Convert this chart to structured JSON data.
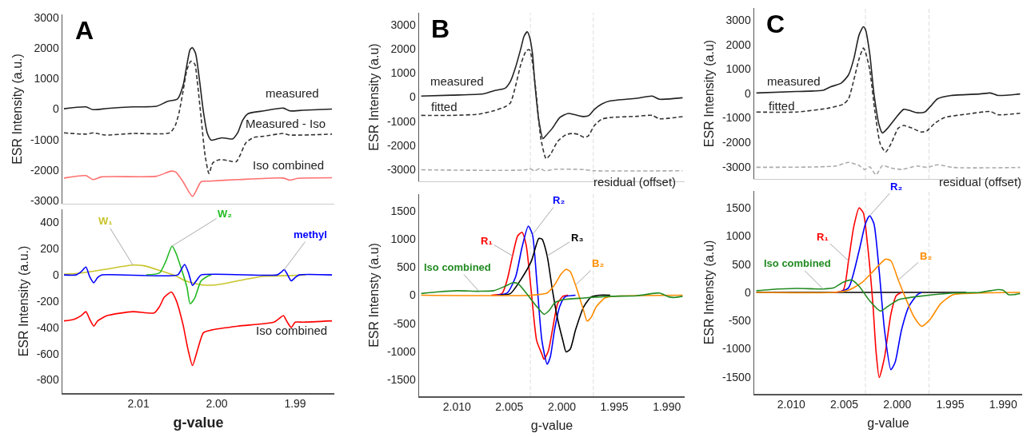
{
  "chart_data": [
    {
      "type": "line",
      "title": "A",
      "ylabel": "ESR Intensity (a.u.)",
      "xlim": [
        2.0197,
        1.985
      ],
      "ylim": [
        -3100,
        3100
      ],
      "yticks": [
        -3000,
        -2000,
        -1000,
        0,
        1000,
        2000,
        3000
      ],
      "tick_labels": "y",
      "marker": "none",
      "series": [
        {
          "name": "measured",
          "color": "#222222",
          "line_style": "solid",
          "x": [
            2.0195,
            2.0167,
            2.0158,
            2.014,
            2.0107,
            2.0077,
            2.0063,
            2.005,
            2.0043,
            2.0038,
            2.0034,
            2.0031,
            2.0027,
            2.0022,
            2.0017,
            2.0012,
            2.0007,
            2.0,
            1.9993,
            1.9987,
            1.998,
            1.9973,
            1.9967,
            1.996,
            1.994,
            1.9915,
            1.9907,
            1.989,
            1.9853
          ],
          "values": [
            10,
            70,
            -20,
            20,
            70,
            90,
            250,
            330,
            770,
            1470,
            1950,
            2010,
            1820,
            940,
            -100,
            -800,
            -1020,
            -980,
            -940,
            -960,
            -980,
            -760,
            -370,
            -150,
            -60,
            30,
            -60,
            -40,
            0
          ]
        },
        {
          "name": "Measured - Iso",
          "color": "#333333",
          "line_style": "dashed",
          "x": [
            2.0195,
            2.0167,
            2.0157,
            2.0143,
            2.0107,
            2.006,
            2.0053,
            2.0048,
            2.0043,
            2.0038,
            2.0033,
            2.0028,
            2.0025,
            2.002,
            2.0015,
            2.001,
            2.0005,
            1.9997,
            1.9987,
            1.998,
            1.9975,
            1.997,
            1.9963,
            1.9953,
            1.994,
            1.9915,
            1.9907,
            1.9853
          ],
          "values": [
            -780,
            -820,
            -780,
            -850,
            -800,
            -780,
            -540,
            -100,
            590,
            1290,
            1570,
            1470,
            940,
            -280,
            -1500,
            -2110,
            -1760,
            -1660,
            -1680,
            -1720,
            -1720,
            -1500,
            -1110,
            -930,
            -890,
            -800,
            -850,
            -820
          ]
        },
        {
          "name": "Iso combined",
          "color": "#ff6f6f",
          "line_style": "solid",
          "x": [
            2.0195,
            2.0167,
            2.0158,
            2.0147,
            2.0077,
            2.0058,
            2.0052,
            2.0043,
            2.0031,
            2.002,
            2.001,
            1.9973,
            1.9915,
            1.9907,
            1.9897,
            1.9853
          ],
          "values": [
            -2260,
            -2180,
            -2310,
            -2220,
            -2200,
            -2030,
            -2070,
            -2380,
            -2860,
            -2380,
            -2360,
            -2310,
            -2260,
            -2330,
            -2270,
            -2250
          ]
        }
      ]
    },
    {
      "type": "line",
      "xlabel": "g-value",
      "ylabel": "ESR Intensity (a.u.)",
      "xlim": [
        2.0197,
        1.985
      ],
      "xticks": [
        2.01,
        {
          "value": 2.0,
          "label": "2.00"
        },
        1.99
      ],
      "ylim": [
        -900,
        500
      ],
      "yticks": [
        -800,
        -600,
        -400,
        -200,
        0,
        200,
        400
      ],
      "marker": "none",
      "series": [
        {
          "name": "W₁",
          "color": "#c8c42a",
          "line_style": "solid",
          "x": [
            2.0195,
            2.0173,
            2.014,
            2.0107,
            2.0093,
            2.0073,
            2.0053,
            2.004,
            2.002,
            2.0,
            1.9973,
            1.994,
            1.9907,
            1.9887
          ],
          "values": [
            5,
            15,
            45,
            75,
            70,
            35,
            -5,
            -45,
            -75,
            -75,
            -45,
            -10,
            -5,
            0
          ]
        },
        {
          "name": "W₂",
          "color": "#22bb22",
          "line_style": "solid",
          "x": [
            2.009,
            2.0073,
            2.0065,
            2.0057,
            2.0052,
            2.0043,
            2.0038,
            2.0034,
            2.0028,
            2.002,
            2.001,
            2.0007
          ],
          "values": [
            0,
            15,
            105,
            220,
            165,
            5,
            -95,
            -220,
            -175,
            -45,
            -5,
            0
          ]
        },
        {
          "name": "methyl",
          "color": "#0000ff",
          "line_style": "solid",
          "x": [
            2.0195,
            2.018,
            2.0173,
            2.0167,
            2.0162,
            2.0157,
            2.0152,
            2.0147,
            2.005,
            2.0045,
            2.0041,
            2.0036,
            2.0031,
            2.0025,
            2.002,
            1.9923,
            1.9918,
            1.9914,
            1.991,
            1.9905,
            1.99,
            1.9895,
            1.9853
          ],
          "values": [
            0,
            0,
            25,
            60,
            -15,
            -60,
            -20,
            0,
            0,
            45,
            80,
            15,
            -80,
            -35,
            0,
            0,
            20,
            40,
            5,
            -45,
            -20,
            0,
            0
          ]
        },
        {
          "name": "Iso combined",
          "color": "#ff0000",
          "line_style": "solid",
          "x": [
            2.0195,
            2.0183,
            2.0173,
            2.0167,
            2.0162,
            2.0157,
            2.0152,
            2.014,
            2.0107,
            2.008,
            2.0073,
            2.0067,
            2.0058,
            2.0052,
            2.0043,
            2.0037,
            2.0031,
            2.0025,
            2.0017,
            2.0007,
            1.9973,
            1.9927,
            1.992,
            1.9915,
            1.991,
            1.9905,
            1.99,
            1.989,
            1.9853
          ],
          "values": [
            -350,
            -340,
            -310,
            -280,
            -340,
            -390,
            -350,
            -310,
            -280,
            -290,
            -240,
            -170,
            -130,
            -190,
            -380,
            -560,
            -690,
            -580,
            -440,
            -420,
            -390,
            -360,
            -330,
            -310,
            -360,
            -400,
            -360,
            -360,
            -350
          ]
        }
      ]
    },
    {
      "type": "line",
      "title": "B",
      "ylabel": "ESR Intensity (a.u)",
      "xlim": [
        2.0136,
        1.9883
      ],
      "ylim": [
        -3500,
        3500
      ],
      "yticks": [
        -3000,
        -2000,
        -1000,
        0,
        1000,
        2000,
        3000
      ],
      "tick_labels": "y",
      "marker": "none",
      "ref_lines": [
        {
          "axis": "x",
          "value": 2.003,
          "color": "#dddddd",
          "line_style": "dashed"
        },
        {
          "axis": "x",
          "value": 1.997,
          "color": "#dddddd",
          "line_style": "dashed"
        }
      ],
      "series": [
        {
          "name": "measured",
          "color": "#222222",
          "line_style": "solid",
          "x": [
            2.0134,
            2.0105,
            2.0075,
            2.0065,
            2.0054,
            2.0049,
            2.0044,
            2.0039,
            2.0036,
            2.0033,
            2.0031,
            2.0028,
            2.0026,
            2.0022,
            2.0018,
            2.0016,
            2.0009,
            2.0002,
            1.9994,
            1.9987,
            1.9979,
            1.9974,
            1.9969,
            1.9962,
            1.9954,
            1.9929,
            1.9914,
            1.9907,
            1.9885
          ],
          "values": [
            40,
            80,
            130,
            260,
            370,
            650,
            1250,
            2030,
            2530,
            2710,
            2530,
            1810,
            700,
            -960,
            -1730,
            -1640,
            -1290,
            -850,
            -680,
            -740,
            -810,
            -760,
            -510,
            -290,
            -160,
            -50,
            40,
            -90,
            -30
          ]
        },
        {
          "name": "fitted",
          "color": "#333333",
          "line_style": "dashed",
          "x": [
            2.0134,
            2.0105,
            2.0079,
            2.0065,
            2.0054,
            2.0049,
            2.0044,
            2.0039,
            2.0034,
            2.0031,
            2.0029,
            2.0025,
            2.002,
            2.0015,
            2.0011,
            2.0004,
            1.9996,
            1.9989,
            1.9984,
            1.9979,
            1.9975,
            1.9969,
            1.9962,
            1.9954,
            1.9929,
            1.9914,
            1.9907,
            1.9885
          ],
          "values": [
            -760,
            -760,
            -710,
            -570,
            -400,
            -240,
            480,
            1370,
            1920,
            1970,
            1700,
            370,
            -1730,
            -2560,
            -2390,
            -1840,
            -1560,
            -1510,
            -1560,
            -1670,
            -1620,
            -1180,
            -920,
            -850,
            -800,
            -760,
            -900,
            -810
          ]
        },
        {
          "name": "residual (offset)",
          "color": "#aaaaaa",
          "line_style": "dashed",
          "x": [
            2.0134,
            2.0034,
            2.0031,
            2.0026,
            2.0021,
            2.0016,
            2.0007,
            1.9979,
            1.9969,
            1.9885
          ],
          "values": [
            -3020,
            -3020,
            -2970,
            -3060,
            -2970,
            -3060,
            -3000,
            -3010,
            -3060,
            -3060
          ]
        }
      ]
    },
    {
      "type": "line",
      "xlabel": "g-value",
      "ylabel": "ESR Intensty (a.u)",
      "xlim": [
        2.0136,
        1.9883
      ],
      "xticks": [
        {
          "value": 2.01,
          "label": "2.010"
        },
        2.005,
        {
          "value": 2.0,
          "label": "2.000"
        },
        1.995,
        {
          "value": 1.99,
          "label": "1.990"
        }
      ],
      "ylim": [
        -1800,
        1800
      ],
      "yticks": [
        -1500,
        -1000,
        -500,
        0,
        500,
        1000,
        1500
      ],
      "marker": "none",
      "ref_lines": [
        {
          "axis": "x",
          "value": 2.003,
          "color": "#dddddd",
          "line_style": "dashed"
        },
        {
          "axis": "x",
          "value": 1.997,
          "color": "#dddddd",
          "line_style": "dashed"
        }
      ],
      "series": [
        {
          "name": "R₁",
          "color": "#ff0000",
          "line_style": "solid",
          "x": [
            2.0067,
            2.0057,
            2.0052,
            2.0047,
            2.0042,
            2.0038,
            2.0034,
            2.0029,
            2.0024,
            2.0019,
            2.0017,
            2.0013,
            2.0009,
            2.0004,
            1.9999,
            1.9994
          ],
          "values": [
            0,
            30,
            280,
            700,
            1060,
            1120,
            890,
            40,
            -810,
            -1050,
            -1140,
            -1000,
            -620,
            -150,
            -20,
            0
          ]
        },
        {
          "name": "R₂",
          "color": "#0000ff",
          "line_style": "solid",
          "x": [
            2.0062,
            2.0052,
            2.0044,
            2.0038,
            2.0032,
            2.0028,
            2.0024,
            2.0019,
            2.0014,
            2.0011,
            2.0007,
            2.0002,
            1.9997,
            1.9987
          ],
          "values": [
            0,
            40,
            330,
            850,
            1230,
            1080,
            280,
            -810,
            -1230,
            -1100,
            -620,
            -200,
            -30,
            0
          ]
        },
        {
          "name": "R₃",
          "color": "#000000",
          "line_style": "solid",
          "x": [
            2.0059,
            2.0049,
            2.0039,
            2.0029,
            2.0022,
            2.0019,
            2.0014,
            2.0009,
            2.0004,
            1.9999,
            1.9996,
            1.9992,
            1.9987,
            1.9979,
            1.9972,
            1.9964,
            1.9954
          ],
          "values": [
            0,
            30,
            280,
            610,
            1010,
            1000,
            700,
            90,
            -430,
            -810,
            -1010,
            -960,
            -620,
            -200,
            -30,
            0,
            0
          ]
        },
        {
          "name": "B₂",
          "color": "#ff8c00",
          "line_style": "solid",
          "x": [
            2.0134,
            2.0029,
            2.0014,
            2.0007,
            2.0001,
            1.9996,
            1.9992,
            1.9987,
            1.9983,
            1.9979,
            1.9976,
            1.9972,
            1.9967,
            1.9959,
            1.9952,
            1.9885
          ],
          "values": [
            0,
            0,
            40,
            180,
            370,
            460,
            420,
            180,
            -50,
            -290,
            -460,
            -390,
            -200,
            -50,
            -20,
            0
          ]
        },
        {
          "name": "Iso combined",
          "color": "#228b22",
          "line_style": "solid",
          "x": [
            2.0134,
            2.0117,
            2.01,
            2.0079,
            2.0065,
            2.0054,
            2.0047,
            2.0042,
            2.0034,
            2.0024,
            2.0017,
            2.0012,
            2.0007,
            1.9999,
            1.9979,
            1.9954,
            1.9929,
            1.9907,
            1.9903,
            1.9898,
            1.9892,
            1.9885
          ],
          "values": [
            30,
            60,
            80,
            70,
            80,
            160,
            220,
            210,
            40,
            -200,
            -340,
            -270,
            -140,
            -80,
            -50,
            -20,
            -10,
            40,
            10,
            -30,
            -40,
            -20
          ]
        }
      ]
    },
    {
      "type": "line",
      "title": "C",
      "ylabel": "ESR Intensity (a.u)",
      "xlim": [
        2.0135,
        1.9882
      ],
      "ylim": [
        -3500,
        3500
      ],
      "yticks": [
        -3000,
        -2000,
        -1000,
        0,
        1000,
        2000,
        3000
      ],
      "tick_labels": "y",
      "marker": "none",
      "ref_lines": [
        {
          "axis": "x",
          "value": 2.003,
          "color": "#dddddd",
          "line_style": "dashed"
        },
        {
          "axis": "x",
          "value": 1.997,
          "color": "#dddddd",
          "line_style": "dashed"
        }
      ],
      "series": [
        {
          "name": "measured",
          "color": "#222222",
          "line_style": "solid",
          "x": [
            2.0133,
            2.0095,
            2.007,
            2.0063,
            2.0053,
            2.0046,
            2.0041,
            2.0036,
            2.0032,
            2.003,
            2.0026,
            2.0022,
            2.0017,
            2.0014,
            2.0009,
            2.0001,
            1.9994,
            1.9989,
            1.9981,
            1.9974,
            1.9969,
            1.9962,
            1.9949,
            1.9922,
            1.9912,
            1.9905,
            1.9884
          ],
          "values": [
            20,
            80,
            130,
            270,
            420,
            760,
            1420,
            2400,
            2730,
            2620,
            1640,
            0,
            -1310,
            -1620,
            -1420,
            -980,
            -650,
            -690,
            -790,
            -760,
            -550,
            -220,
            -80,
            -20,
            20,
            -80,
            -20
          ]
        },
        {
          "name": "fitted",
          "color": "#333333",
          "line_style": "dashed",
          "x": [
            2.0133,
            2.0095,
            2.0065,
            2.0051,
            2.0046,
            2.0041,
            2.0036,
            2.0032,
            2.003,
            2.0026,
            2.0021,
            2.0016,
            2.0011,
            2.0006,
            1.9999,
            1.9994,
            1.9986,
            1.9977,
            1.9972,
            1.9964,
            1.9955,
            1.9935,
            1.9912,
            1.9905,
            1.9884
          ],
          "values": [
            -760,
            -760,
            -600,
            -440,
            -220,
            550,
            1420,
            1860,
            1690,
            980,
            -760,
            -2070,
            -2400,
            -2070,
            -1420,
            -1310,
            -1420,
            -1580,
            -1530,
            -1200,
            -980,
            -850,
            -740,
            -870,
            -810
          ]
        },
        {
          "name": "residual (offset)",
          "color": "#aaaaaa",
          "line_style": "dashed",
          "x": [
            2.0133,
            2.0058,
            2.0046,
            2.0036,
            2.0031,
            2.0026,
            2.002,
            2.0014,
            2.0006,
            1.9996,
            1.9981,
            1.9972,
            1.9962,
            1.9947,
            1.9884
          ],
          "values": [
            -3020,
            -2970,
            -2820,
            -2950,
            -3110,
            -3000,
            -3330,
            -2950,
            -3050,
            -3110,
            -2970,
            -3030,
            -2920,
            -3030,
            -3030
          ]
        }
      ]
    },
    {
      "type": "line",
      "xlabel": "g-value",
      "ylabel": "ESR Intensty (a.u)",
      "xlim": [
        2.0135,
        1.9882
      ],
      "xticks": [
        {
          "value": 2.01,
          "label": "2.010"
        },
        2.005,
        {
          "value": 2.0,
          "label": "2.000"
        },
        1.995,
        {
          "value": 1.99,
          "label": "1.990"
        }
      ],
      "ylim": [
        -1800,
        1800
      ],
      "yticks": [
        -1500,
        -1000,
        -500,
        0,
        500,
        1000,
        1500
      ],
      "marker": "none",
      "ref_lines": [
        {
          "axis": "x",
          "value": 2.003,
          "color": "#dddddd",
          "line_style": "dashed"
        },
        {
          "axis": "x",
          "value": 1.997,
          "color": "#dddddd",
          "line_style": "dashed"
        }
      ],
      "series": [
        {
          "color": "#000000",
          "line_style": "solid",
          "x": [
            2.0133,
            1.9935
          ],
          "values": [
            0,
            0
          ]
        },
        {
          "name": "R₁",
          "color": "#ff0000",
          "line_style": "solid",
          "x": [
            2.006,
            2.0051,
            2.0046,
            2.0041,
            2.0036,
            2.0032,
            2.0028,
            2.0023,
            2.002,
            2.0017,
            2.0012,
            2.0006,
            2.0001,
            1.9996
          ],
          "values": [
            0,
            40,
            560,
            1170,
            1500,
            1410,
            840,
            -200,
            -1050,
            -1510,
            -1150,
            -390,
            -60,
            0
          ]
        },
        {
          "name": "R₂",
          "color": "#0000ff",
          "line_style": "solid",
          "x": [
            2.0056,
            2.0046,
            2.0036,
            2.003,
            2.0026,
            2.0022,
            2.0017,
            2.0012,
            2.0006,
            2.0002,
            1.9996,
            1.9989,
            1.9981,
            1.9977
          ],
          "values": [
            0,
            80,
            740,
            1220,
            1360,
            1220,
            370,
            -670,
            -1370,
            -1240,
            -670,
            -250,
            -40,
            0
          ]
        },
        {
          "name": "B₂",
          "color": "#ff8c00",
          "line_style": "solid",
          "x": [
            2.0133,
            2.006,
            2.0046,
            2.0033,
            2.0021,
            2.0011,
            2.0006,
            1.9999,
            1.9991,
            1.9984,
            1.9977,
            1.9969,
            1.9959,
            1.9947,
            1.9922,
            1.9884
          ],
          "values": [
            0,
            0,
            40,
            180,
            410,
            590,
            560,
            220,
            -150,
            -440,
            -600,
            -480,
            -200,
            -40,
            -10,
            0
          ]
        },
        {
          "name": "Iso combined",
          "color": "#228b22",
          "line_style": "solid",
          "x": [
            2.0133,
            2.012,
            2.0095,
            2.007,
            2.006,
            2.0051,
            2.0043,
            2.0036,
            2.0026,
            2.0016,
            2.0009,
            1.9999,
            1.9984,
            1.9947,
            1.9922,
            1.9905,
            1.99,
            1.9895,
            1.989,
            1.9884
          ],
          "values": [
            30,
            50,
            70,
            60,
            80,
            180,
            220,
            110,
            -150,
            -330,
            -250,
            -130,
            -80,
            -10,
            0,
            50,
            40,
            -40,
            -40,
            -20
          ]
        }
      ]
    }
  ]
}
